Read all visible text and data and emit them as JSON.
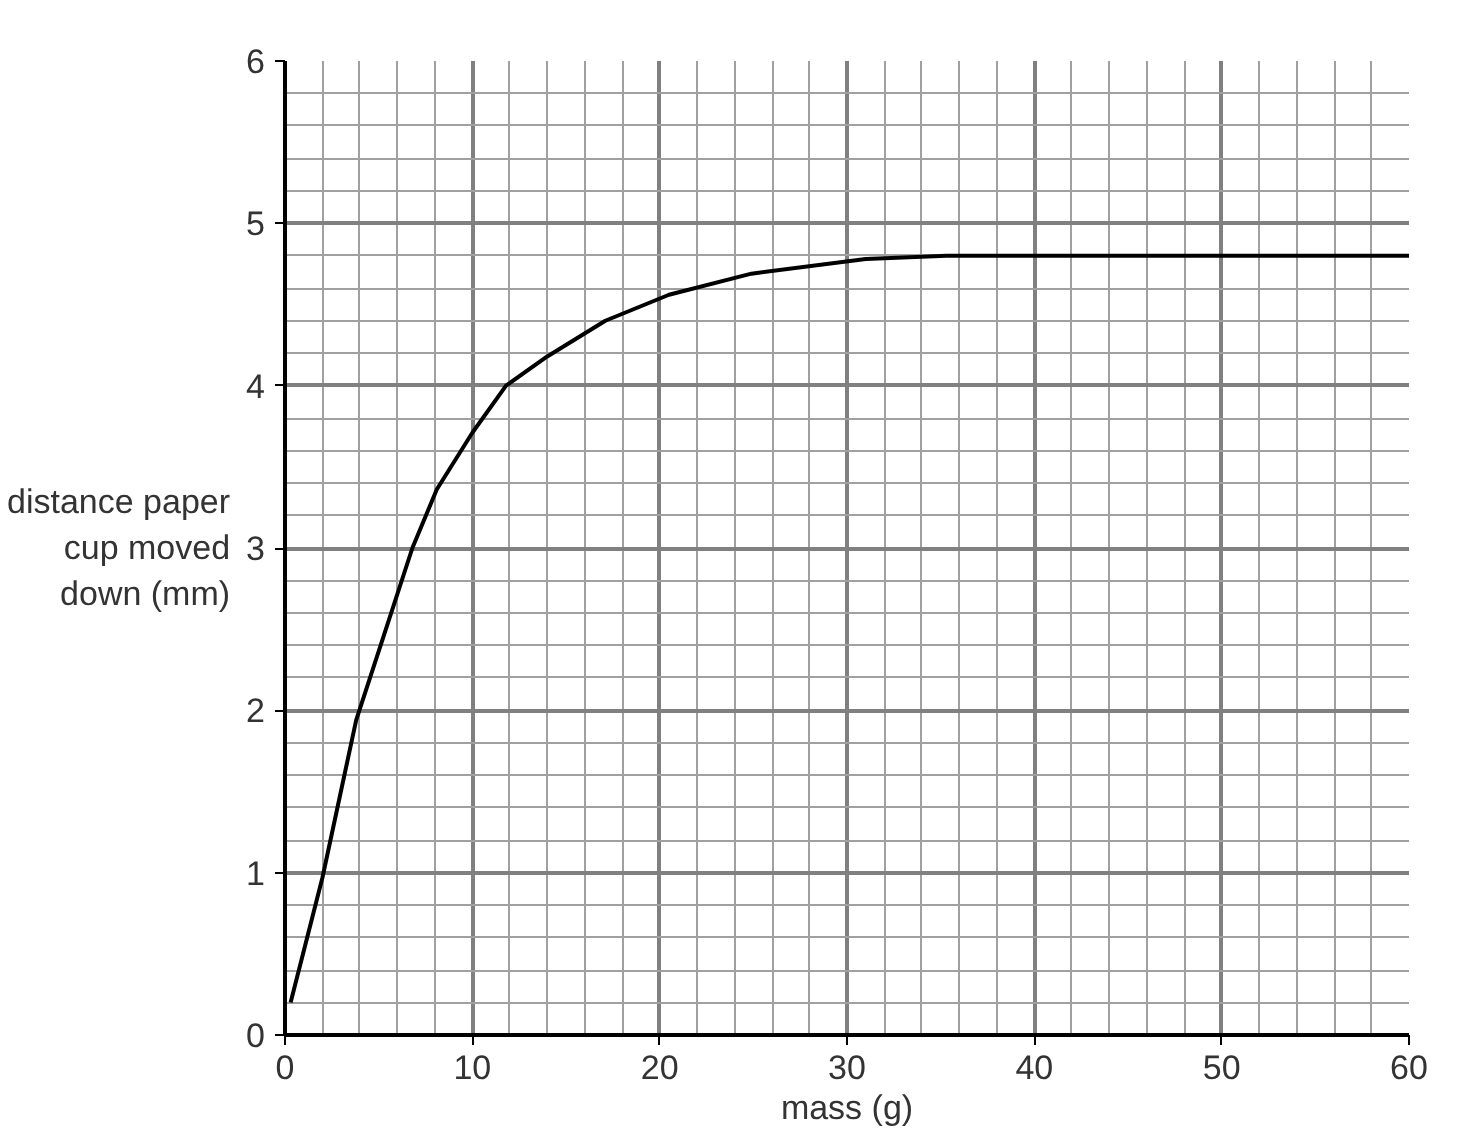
{
  "chart_data": {
    "type": "line",
    "xlabel": "mass (g)",
    "ylabel": "distance paper\ncup moved\ndown (mm)",
    "x": [
      0.3,
      2,
      3.8,
      5.3,
      6.8,
      8.1,
      10,
      11.8,
      14,
      17.1,
      20.5,
      24.9,
      31,
      35.3,
      60
    ],
    "series": [
      {
        "color": "#000000",
        "values": [
          0.2,
          0.97,
          1.94,
          2.47,
          3.0,
          3.36,
          3.71,
          4.0,
          4.18,
          4.4,
          4.56,
          4.69,
          4.78,
          4.8,
          4.8
        ]
      }
    ],
    "xlim": [
      0,
      60
    ],
    "ylim": [
      0,
      6
    ],
    "xticks": [
      0,
      10,
      20,
      30,
      40,
      50,
      60
    ],
    "yticks": [
      0,
      1,
      2,
      3,
      4,
      5,
      6
    ],
    "grid": true,
    "marker": "none",
    "line_style": "solid"
  }
}
